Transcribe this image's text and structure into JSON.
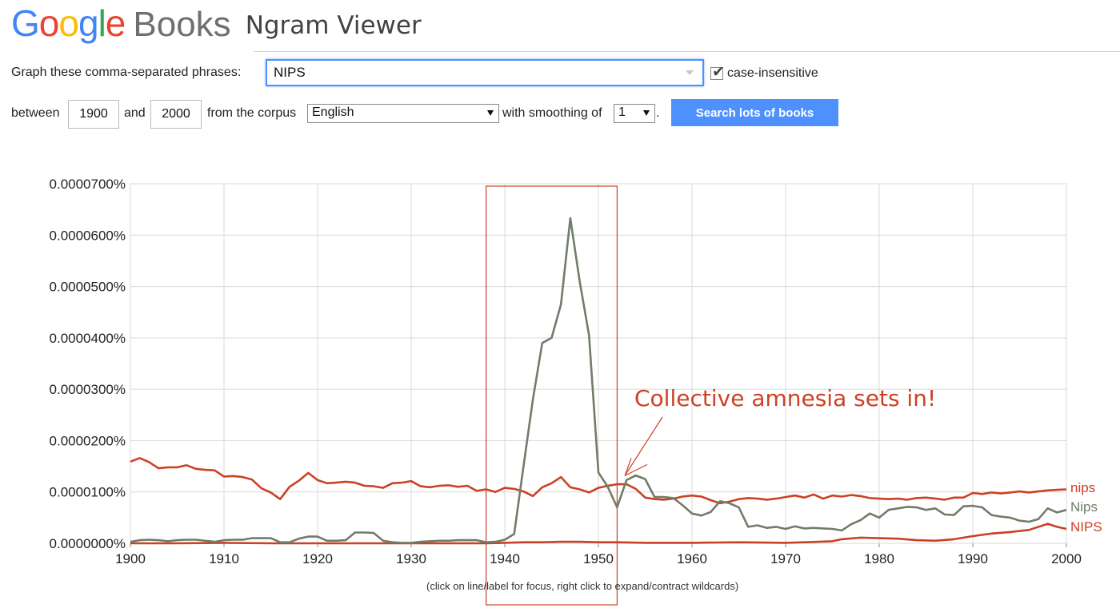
{
  "header": {
    "logo_google": [
      "G",
      "o",
      "o",
      "g",
      "l",
      "e"
    ],
    "logo_google_colors": [
      "#4285f4",
      "#ea4335",
      "#fbbc05",
      "#4285f4",
      "#34a853",
      "#ea4335"
    ],
    "logo_books": "Books",
    "app_title": "Ngram Viewer"
  },
  "form": {
    "phrases_label": "Graph these comma-separated phrases:",
    "phrases_value": "NIPS",
    "case_insensitive_label": "case-insensitive",
    "case_insensitive_checked": true,
    "between_label": "between",
    "start_year": "1900",
    "and_label": "and",
    "end_year": "2000",
    "corpus_label": "from the corpus",
    "corpus_value": "English",
    "smoothing_label": "with smoothing of",
    "smoothing_value": "1",
    "period": ".",
    "search_button": "Search lots of books"
  },
  "caption": "(click on line/label for focus, right click to expand/contract wildcards)",
  "chart_data": {
    "type": "line",
    "title": "",
    "xlabel": "",
    "ylabel": "",
    "xlim": [
      1900,
      2000
    ],
    "ylim": [
      0,
      7e-05
    ],
    "x_ticks": [
      1900,
      1910,
      1920,
      1930,
      1940,
      1950,
      1960,
      1970,
      1980,
      1990,
      2000
    ],
    "x_tick_labels": [
      "1900",
      "1910",
      "1920",
      "1930",
      "1940",
      "1950",
      "1960",
      "1970",
      "1980",
      "1990",
      "2000"
    ],
    "y_ticks": [
      0,
      1e-05,
      2e-05,
      3e-05,
      4e-05,
      5e-05,
      6e-05,
      7e-05
    ],
    "y_tick_labels": [
      "0.0000000%",
      "0.0000100%",
      "0.0000200%",
      "0.0000300%",
      "0.0000400%",
      "0.0000500%",
      "0.0000600%",
      "0.0000700%"
    ],
    "grid": true,
    "series": [
      {
        "name": "nips",
        "color": "#cc4125",
        "x": [
          1900,
          1901,
          1902,
          1903,
          1904,
          1905,
          1906,
          1907,
          1908,
          1909,
          1910,
          1911,
          1912,
          1913,
          1914,
          1915,
          1916,
          1917,
          1918,
          1919,
          1920,
          1921,
          1922,
          1923,
          1924,
          1925,
          1926,
          1927,
          1928,
          1929,
          1930,
          1931,
          1932,
          1933,
          1934,
          1935,
          1936,
          1937,
          1938,
          1939,
          1940,
          1941,
          1942,
          1943,
          1944,
          1945,
          1946,
          1947,
          1948,
          1949,
          1950,
          1951,
          1952,
          1953,
          1954,
          1955,
          1956,
          1957,
          1958,
          1959,
          1960,
          1961,
          1962,
          1963,
          1964,
          1965,
          1966,
          1967,
          1968,
          1969,
          1970,
          1971,
          1972,
          1973,
          1974,
          1975,
          1976,
          1977,
          1978,
          1979,
          1980,
          1981,
          1982,
          1983,
          1984,
          1985,
          1986,
          1987,
          1988,
          1989,
          1990,
          1991,
          1992,
          1993,
          1994,
          1995,
          1996,
          1997,
          1998,
          1999,
          2000
        ],
        "y": [
          1.59e-05,
          1.66e-05,
          1.58e-05,
          1.46e-05,
          1.48e-05,
          1.48e-05,
          1.52e-05,
          1.45e-05,
          1.43e-05,
          1.42e-05,
          1.3e-05,
          1.31e-05,
          1.29e-05,
          1.24e-05,
          1.07e-05,
          9.9e-06,
          8.6e-06,
          1.1e-05,
          1.22e-05,
          1.37e-05,
          1.23e-05,
          1.17e-05,
          1.18e-05,
          1.2e-05,
          1.18e-05,
          1.12e-05,
          1.11e-05,
          1.08e-05,
          1.17e-05,
          1.18e-05,
          1.21e-05,
          1.11e-05,
          1.09e-05,
          1.12e-05,
          1.13e-05,
          1.1e-05,
          1.12e-05,
          1.02e-05,
          1.05e-05,
          1e-05,
          1.08e-05,
          1.06e-05,
          1.01e-05,
          9.2e-06,
          1.09e-05,
          1.17e-05,
          1.29e-05,
          1.09e-05,
          1.05e-05,
          9.9e-06,
          1.08e-05,
          1.12e-05,
          1.15e-05,
          1.15e-05,
          1.06e-05,
          8.9e-06,
          8.6e-06,
          8.5e-06,
          8.7e-06,
          9.1e-06,
          9.3e-06,
          9.1e-06,
          8.4e-06,
          7.8e-06,
          8.1e-06,
          8.6e-06,
          8.8e-06,
          8.7e-06,
          8.5e-06,
          8.7e-06,
          9e-06,
          9.3e-06,
          8.9e-06,
          9.5e-06,
          8.7e-06,
          9.3e-06,
          9.1e-06,
          9.4e-06,
          9.2e-06,
          8.8e-06,
          8.7e-06,
          8.6e-06,
          8.7e-06,
          8.5e-06,
          8.8e-06,
          8.9e-06,
          8.7e-06,
          8.5e-06,
          8.9e-06,
          8.9e-06,
          9.8e-06,
          9.6e-06,
          9.9e-06,
          9.7e-06,
          9.9e-06,
          1.01e-05,
          9.9e-06,
          1.01e-05,
          1.03e-05,
          1.04e-05,
          1.05e-05
        ]
      },
      {
        "name": "Nips",
        "color": "#6f7d69",
        "x": [
          1900,
          1901,
          1902,
          1903,
          1904,
          1905,
          1906,
          1907,
          1908,
          1909,
          1910,
          1911,
          1912,
          1913,
          1914,
          1915,
          1916,
          1917,
          1918,
          1919,
          1920,
          1921,
          1922,
          1923,
          1924,
          1925,
          1926,
          1927,
          1928,
          1929,
          1930,
          1931,
          1932,
          1933,
          1934,
          1935,
          1936,
          1937,
          1938,
          1939,
          1940,
          1941,
          1942,
          1943,
          1944,
          1945,
          1946,
          1947,
          1948,
          1949,
          1950,
          1951,
          1952,
          1953,
          1954,
          1955,
          1956,
          1957,
          1958,
          1959,
          1960,
          1961,
          1962,
          1963,
          1964,
          1965,
          1966,
          1967,
          1968,
          1969,
          1970,
          1971,
          1972,
          1973,
          1974,
          1975,
          1976,
          1977,
          1978,
          1979,
          1980,
          1981,
          1982,
          1983,
          1984,
          1985,
          1986,
          1987,
          1988,
          1989,
          1990,
          1991,
          1992,
          1993,
          1994,
          1995,
          1996,
          1997,
          1998,
          1999,
          2000
        ],
        "y": [
          3e-07,
          6e-07,
          7e-07,
          6e-07,
          4e-07,
          6e-07,
          7e-07,
          7e-07,
          5e-07,
          3e-07,
          6e-07,
          7e-07,
          7e-07,
          1e-06,
          1e-06,
          1e-06,
          2e-07,
          2e-07,
          9e-07,
          1.3e-06,
          1.3e-06,
          5e-07,
          5e-07,
          6e-07,
          2.1e-06,
          2.1e-06,
          2e-06,
          5e-07,
          2e-07,
          1e-07,
          1e-07,
          3e-07,
          4e-07,
          5e-07,
          5e-07,
          6e-07,
          6e-07,
          6e-07,
          2e-07,
          3e-07,
          7e-07,
          1.8e-06,
          1.5e-05,
          2.8e-05,
          3.9e-05,
          4e-05,
          4.65e-05,
          6.33e-05,
          5.1e-05,
          4.05e-05,
          1.38e-05,
          1.1e-05,
          7e-06,
          1.23e-05,
          1.32e-05,
          1.25e-05,
          9e-06,
          9e-06,
          8.8e-06,
          7.4e-06,
          5.8e-06,
          5.4e-06,
          6.1e-06,
          8.2e-06,
          7.8e-06,
          7e-06,
          3.2e-06,
          3.5e-06,
          3e-06,
          3.2e-06,
          2.8e-06,
          3.3e-06,
          2.9e-06,
          3e-06,
          2.9e-06,
          2.8e-06,
          2.5e-06,
          3.7e-06,
          4.5e-06,
          5.8e-06,
          5e-06,
          6.5e-06,
          6.8e-06,
          7.1e-06,
          7e-06,
          6.5e-06,
          6.8e-06,
          5.6e-06,
          5.5e-06,
          7.2e-06,
          7.3e-06,
          7e-06,
          5.5e-06,
          5.2e-06,
          5e-06,
          4.4e-06,
          4.2e-06,
          4.7e-06,
          6.8e-06,
          6e-06,
          6.5e-06
        ]
      },
      {
        "name": "NIPS",
        "color": "#cc4125",
        "x": [
          1900,
          1905,
          1910,
          1915,
          1920,
          1925,
          1930,
          1935,
          1938,
          1940,
          1942,
          1944,
          1946,
          1948,
          1950,
          1952,
          1955,
          1960,
          1965,
          1970,
          1972,
          1975,
          1976,
          1978,
          1980,
          1982,
          1984,
          1986,
          1988,
          1990,
          1992,
          1994,
          1996,
          1998,
          1999,
          2000
        ],
        "y": [
          0,
          0,
          1e-07,
          0,
          0,
          0,
          0,
          0,
          0,
          1e-07,
          2e-07,
          2e-07,
          3e-07,
          3e-07,
          2e-07,
          2e-07,
          1e-07,
          1e-07,
          2e-07,
          1e-07,
          2e-07,
          4e-07,
          8e-07,
          1.1e-06,
          1e-06,
          9e-07,
          6e-07,
          5e-07,
          8e-07,
          1.4e-06,
          1.9e-06,
          2.2e-06,
          2.6e-06,
          3.8e-06,
          3.2e-06,
          2.8e-06
        ]
      }
    ],
    "series_labels": [
      "nips",
      "Nips",
      "NIPS"
    ],
    "annotations": [
      {
        "text": "Collective amnesia sets in!",
        "color": "#cc4125",
        "points_to_x": 1953,
        "points_to_y": 1.27e-05
      },
      {
        "type": "highlight-box",
        "x_from": 1938,
        "x_to": 1952,
        "color": "#cc4125"
      }
    ]
  }
}
